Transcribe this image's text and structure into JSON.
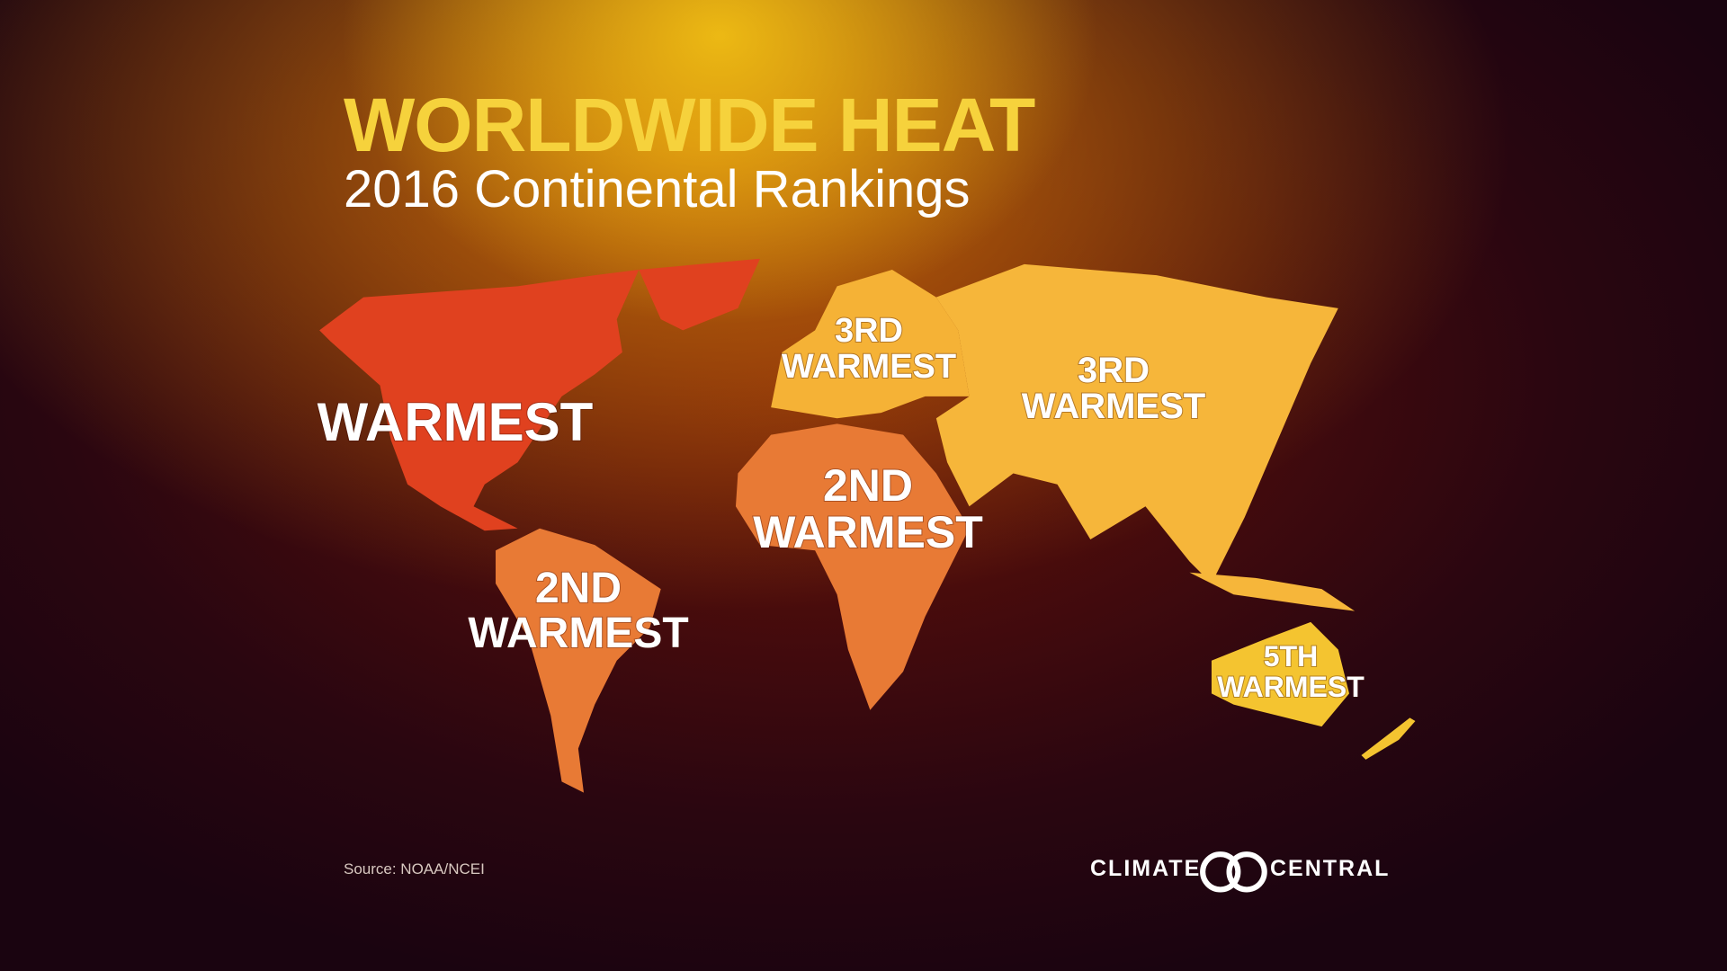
{
  "header": {
    "title": "WORLDWIDE HEAT",
    "subtitle": "2016 Continental Rankings"
  },
  "regions": [
    {
      "label": [
        "WARMEST"
      ]
    },
    {
      "label": [
        "2ND",
        "WARMEST"
      ]
    },
    {
      "label": [
        "3RD",
        "WARMEST"
      ]
    },
    {
      "label": [
        "2ND",
        "WARMEST"
      ]
    },
    {
      "label": [
        "3RD",
        "WARMEST"
      ]
    },
    {
      "label": [
        "5TH",
        "WARMEST"
      ]
    }
  ],
  "footer": {
    "source": "Source: NOAA/NCEI",
    "logo_left": "CLIMATE",
    "logo_right": "CENTRAL"
  }
}
